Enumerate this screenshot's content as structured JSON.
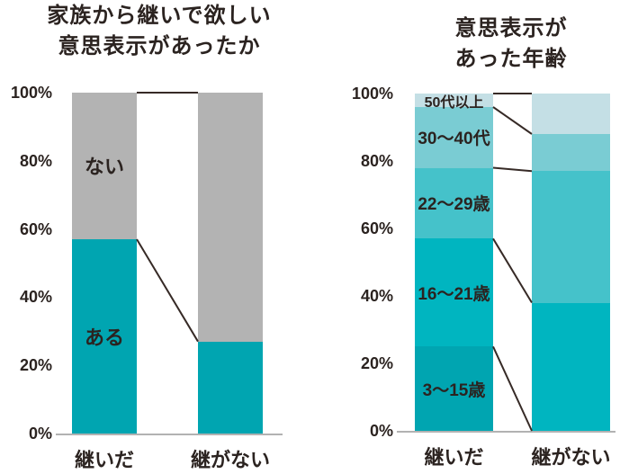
{
  "page": {
    "background": "#ffffff"
  },
  "chart_data": [
    {
      "type": "bar",
      "stacked": true,
      "title": "家族から継いで欲しい\n意思表示があったか",
      "categories": [
        "継いだ",
        "継がない"
      ],
      "series": [
        {
          "name": "ある",
          "values": [
            57,
            27
          ],
          "color": "#00a5b1"
        },
        {
          "name": "ない",
          "values": [
            43,
            73
          ],
          "color": "#b3b3b3"
        }
      ],
      "ylabel": "",
      "xlabel": "",
      "ylim": [
        0,
        100
      ],
      "yticks": [
        "0%",
        "20%",
        "40%",
        "60%",
        "80%",
        "100%"
      ],
      "unit": "%",
      "grid": false,
      "legend_position": "labels-inside-first-bar",
      "text_color": "#2b2320",
      "connector_color": "#362a26",
      "axis_color": "#b2b2b2"
    },
    {
      "type": "bar",
      "stacked": true,
      "title": "意思表示があった年齢",
      "categories": [
        "継いだ",
        "継がない"
      ],
      "series": [
        {
          "name": "3〜15歳",
          "values": [
            25,
            0
          ],
          "color": "#00a5b1"
        },
        {
          "name": "16〜21歳",
          "values": [
            32,
            38
          ],
          "color": "#00b5c0"
        },
        {
          "name": "22〜29歳",
          "values": [
            21,
            39
          ],
          "color": "#45c2ca"
        },
        {
          "name": "30〜40代",
          "values": [
            18,
            11
          ],
          "color": "#7accd3"
        },
        {
          "name": "50代以上",
          "values": [
            4,
            12
          ],
          "color": "#c4dfe5"
        }
      ],
      "ylabel": "",
      "xlabel": "",
      "ylim": [
        0,
        100
      ],
      "yticks": [
        "0%",
        "20%",
        "40%",
        "60%",
        "80%",
        "100%"
      ],
      "unit": "%",
      "grid": false,
      "legend_position": "labels-inside-first-bar",
      "text_color": "#2b2320",
      "connector_color": "#362a26",
      "axis_color": "#b2b2b2"
    }
  ]
}
